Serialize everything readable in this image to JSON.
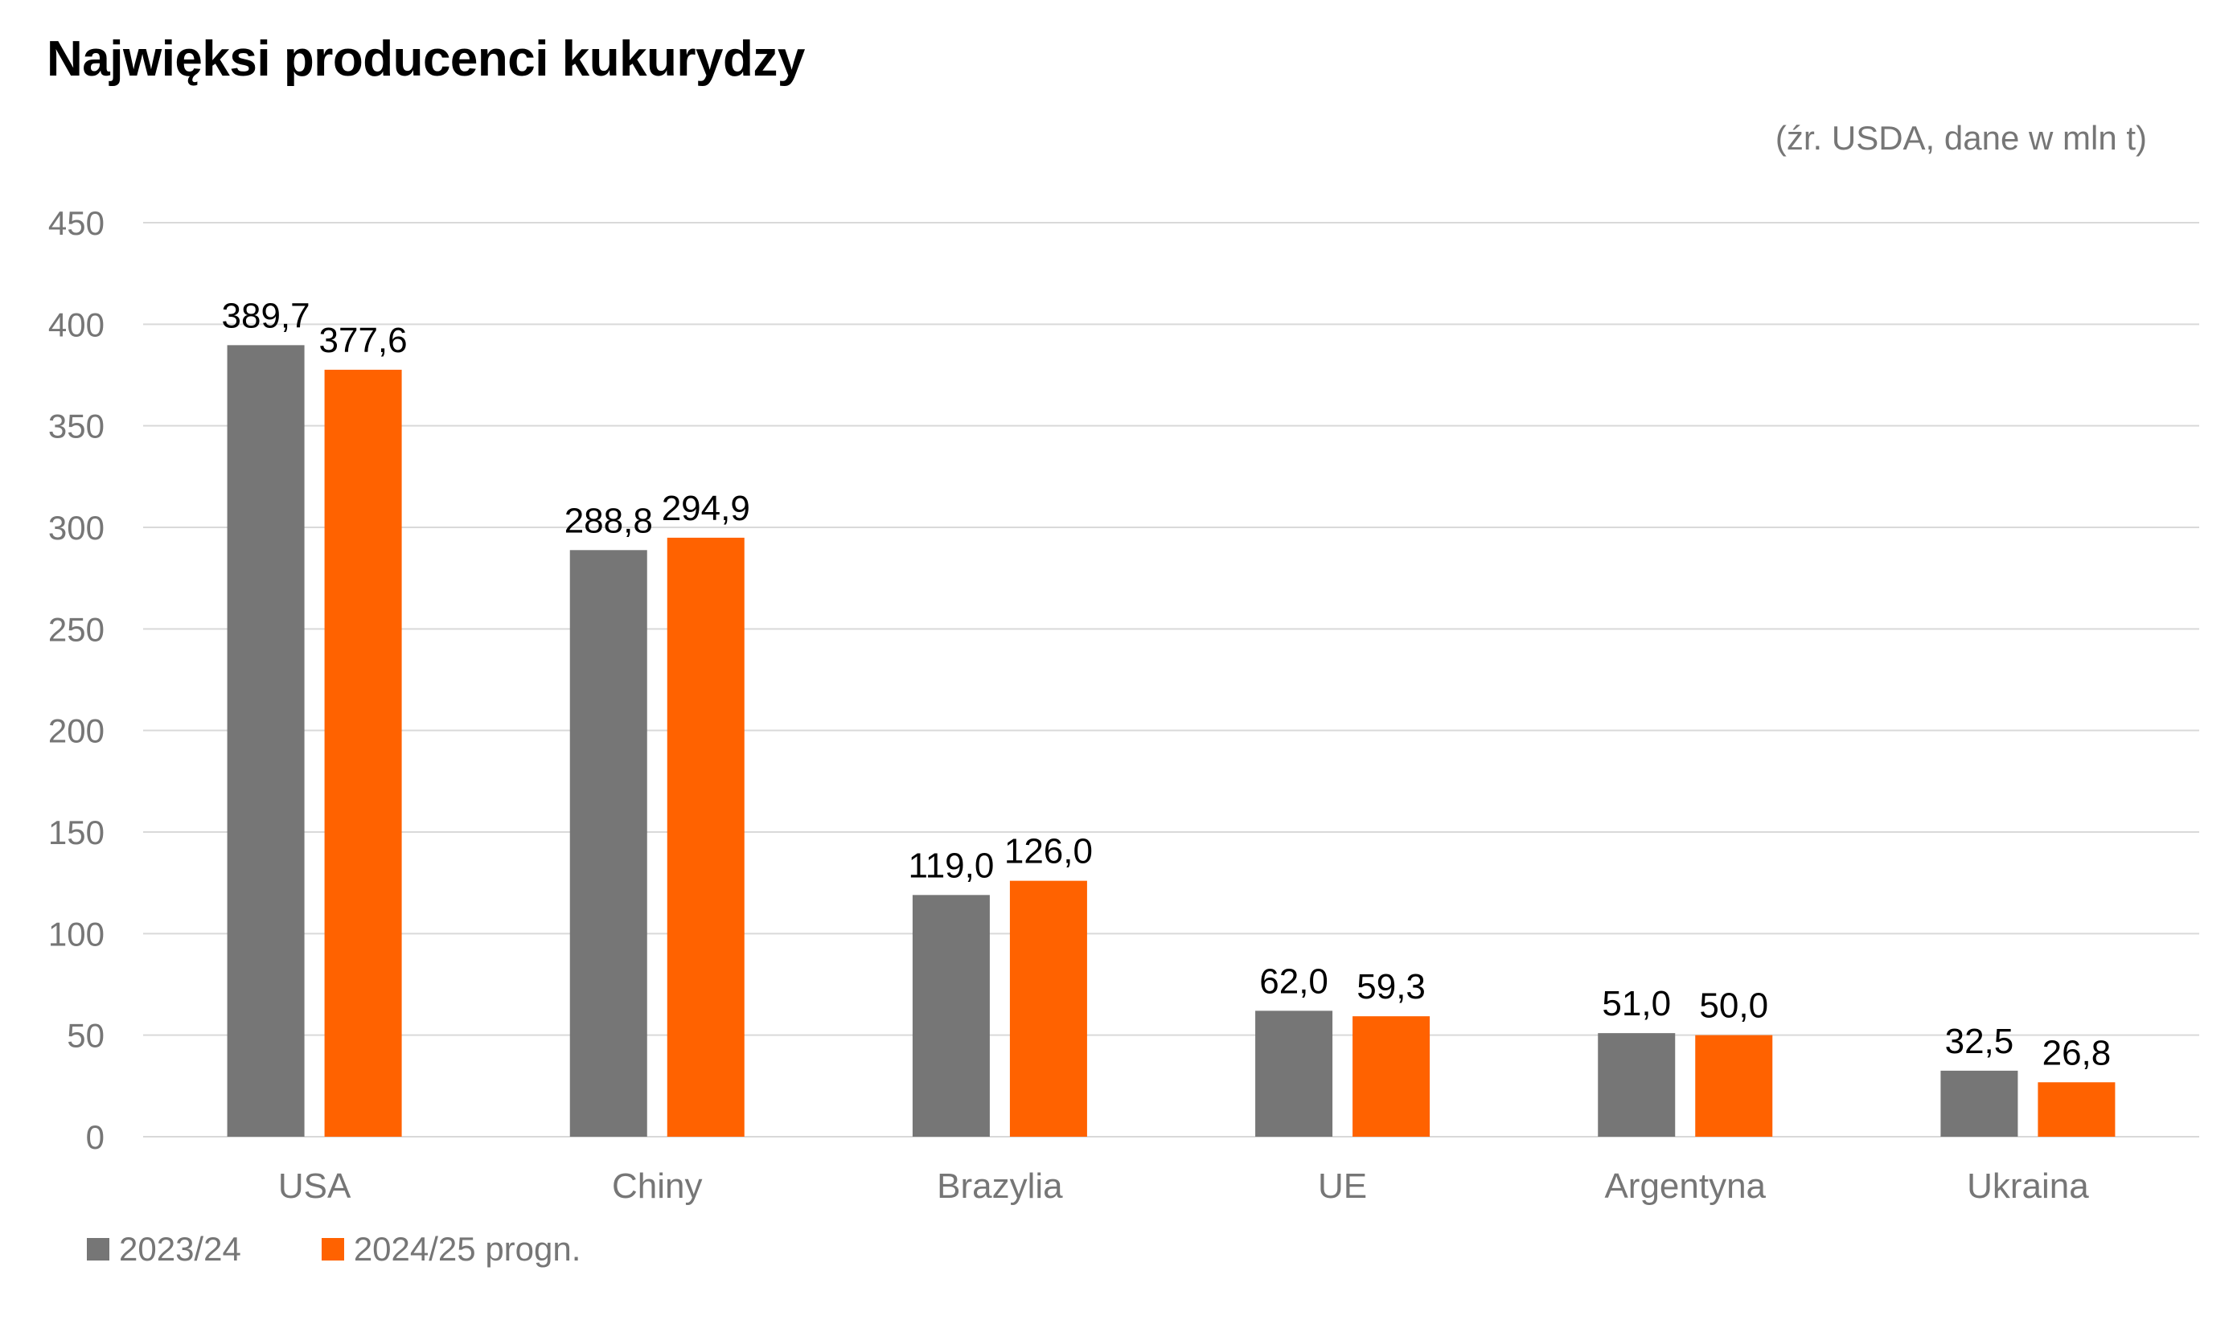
{
  "chart_data": {
    "type": "bar",
    "title": "Najwięksi producenci kukurydzy",
    "source_note": "(źr. USDA, dane w mln t)",
    "categories": [
      "USA",
      "Chiny",
      "Brazylia",
      "UE",
      "Argentyna",
      "Ukraina"
    ],
    "series": [
      {
        "name": "2023/24",
        "color": "#767676",
        "values": [
          389.7,
          288.8,
          119.0,
          62.0,
          51.0,
          32.5
        ],
        "labels": [
          "389,7",
          "288,8",
          "119,0",
          "62,0",
          "51,0",
          "32,5"
        ]
      },
      {
        "name": "2024/25 progn.",
        "color": "#FF6200",
        "values": [
          377.6,
          294.9,
          126.0,
          59.3,
          50.0,
          26.8
        ],
        "labels": [
          "377,6",
          "294,9",
          "126,0",
          "59,3",
          "50,0",
          "26,8"
        ]
      }
    ],
    "ylim": [
      0,
      450
    ],
    "yticks": [
      0,
      50,
      100,
      150,
      200,
      250,
      300,
      350,
      400,
      450
    ],
    "grid": true,
    "legend_position": "bottom-left"
  },
  "colors": {
    "grid": "#d9d9d9",
    "axis_text": "#767676",
    "title": "#000000"
  }
}
